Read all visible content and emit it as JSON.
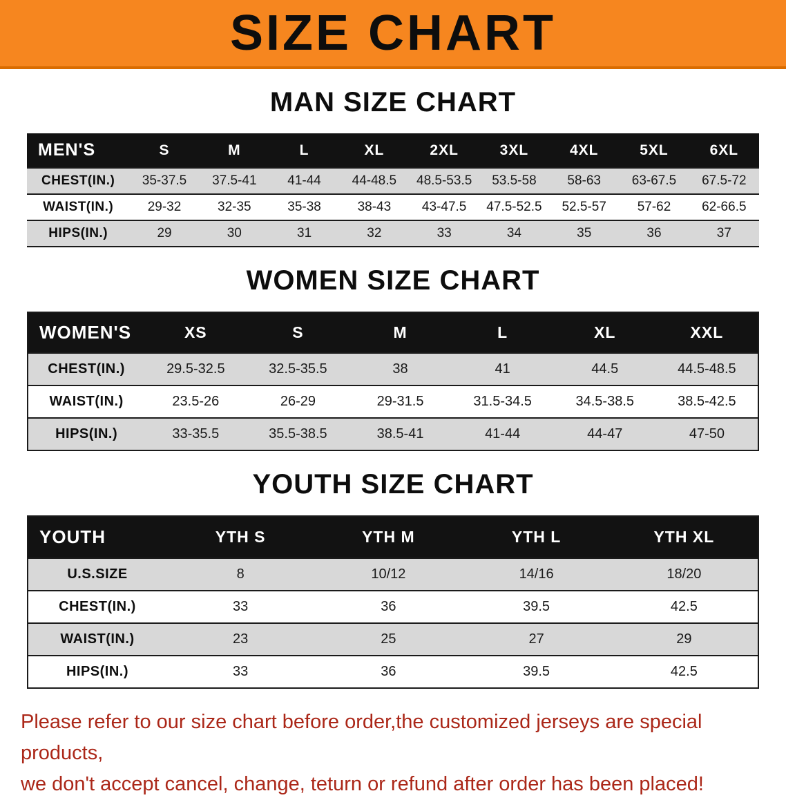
{
  "banner": {
    "title": "SIZE CHART"
  },
  "colors": {
    "banner_bg": "#f6861f",
    "banner_edge": "#d96c00",
    "header_bg": "#121212",
    "stripe": "#d8d8d8",
    "note_red": "#ab2718"
  },
  "sections": {
    "men": {
      "heading": "MAN SIZE CHART",
      "table": {
        "header": [
          "MEN'S",
          "S",
          "M",
          "L",
          "XL",
          "2XL",
          "3XL",
          "4XL",
          "5XL",
          "6XL"
        ],
        "rows": [
          [
            "CHEST(IN.)",
            "35-37.5",
            "37.5-41",
            "41-44",
            "44-48.5",
            "48.5-53.5",
            "53.5-58",
            "58-63",
            "63-67.5",
            "67.5-72"
          ],
          [
            "WAIST(IN.)",
            "29-32",
            "32-35",
            "35-38",
            "38-43",
            "43-47.5",
            "47.5-52.5",
            "52.5-57",
            "57-62",
            "62-66.5"
          ],
          [
            "HIPS(IN.)",
            "29",
            "30",
            "31",
            "32",
            "33",
            "34",
            "35",
            "36",
            "37"
          ]
        ]
      }
    },
    "women": {
      "heading": "WOMEN SIZE CHART",
      "table": {
        "header": [
          "WOMEN'S",
          "XS",
          "S",
          "M",
          "L",
          "XL",
          "XXL"
        ],
        "rows": [
          [
            "CHEST(IN.)",
            "29.5-32.5",
            "32.5-35.5",
            "38",
            "41",
            "44.5",
            "44.5-48.5"
          ],
          [
            "WAIST(IN.)",
            "23.5-26",
            "26-29",
            "29-31.5",
            "31.5-34.5",
            "34.5-38.5",
            "38.5-42.5"
          ],
          [
            "HIPS(IN.)",
            "33-35.5",
            "35.5-38.5",
            "38.5-41",
            "41-44",
            "44-47",
            "47-50"
          ]
        ]
      }
    },
    "youth": {
      "heading": "YOUTH SIZE CHART",
      "table": {
        "header": [
          "YOUTH",
          "YTH S",
          "YTH M",
          "YTH L",
          "YTH XL"
        ],
        "rows": [
          [
            "U.S.SIZE",
            "8",
            "10/12",
            "14/16",
            "18/20"
          ],
          [
            "CHEST(IN.)",
            "33",
            "36",
            "39.5",
            "42.5"
          ],
          [
            "WAIST(IN.)",
            "23",
            "25",
            "27",
            "29"
          ],
          [
            "HIPS(IN.)",
            "33",
            "36",
            "39.5",
            "42.5"
          ]
        ]
      }
    }
  },
  "note": {
    "line1": "Please refer to our size chart before order,the customized jerseys are special products,",
    "line2": "we don't accept cancel, change, teturn or refund after order has been placed!"
  }
}
